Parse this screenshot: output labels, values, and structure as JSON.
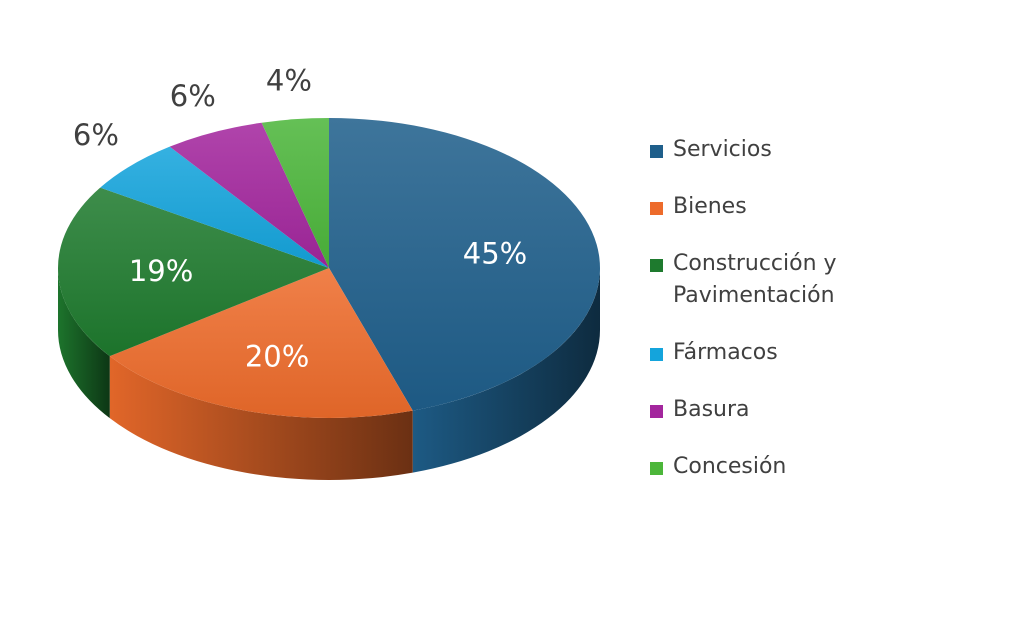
{
  "chart_data": {
    "type": "pie",
    "title": "",
    "categories": [
      "Servicios",
      "Bienes",
      "Construcción y Pavimentación",
      "Fármacos",
      "Basura",
      "Concesión"
    ],
    "values": [
      45,
      20,
      19,
      6,
      6,
      4
    ],
    "labels": [
      "45%",
      "20%",
      "19%",
      "6%",
      "6%",
      "4%"
    ],
    "colors": [
      "#1f5f8b",
      "#ed6b2b",
      "#1e7a2e",
      "#14a4dc",
      "#a3269d",
      "#4cb63a"
    ],
    "legend_position": "right",
    "style": "3d"
  }
}
